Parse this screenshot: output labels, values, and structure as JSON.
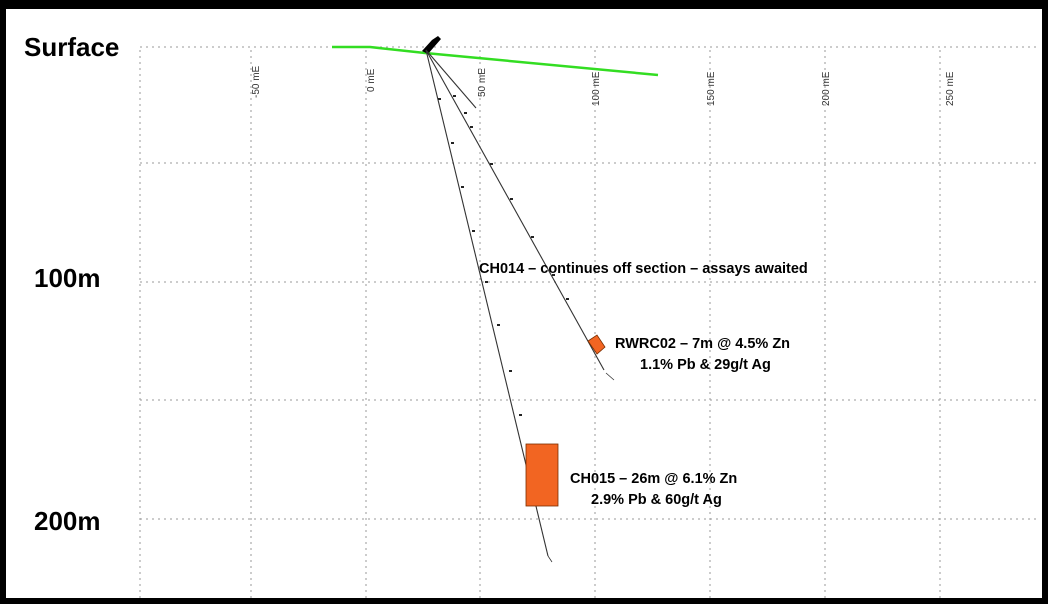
{
  "depth_labels": {
    "surface": "Surface",
    "d100": "100m",
    "d200": "200m"
  },
  "easting_labels": [
    "-50 mE",
    "0 mE",
    "50 mE",
    "100 mE",
    "150 mE",
    "200 mE",
    "250 mE"
  ],
  "annotations": {
    "ch014": "CH014 – continues off section – assays awaited",
    "rwrc02_line1": "RWRC02 – 7m @ 4.5% Zn",
    "rwrc02_line2": "1.1% Pb & 29g/t Ag",
    "ch015_line1": "CH015 – 26m @ 6.1% Zn",
    "ch015_line2": "2.9% Pb & 60g/t Ag"
  },
  "colors": {
    "surface_line": "#33dd22",
    "intercept_fill": "#f26522",
    "intercept_stroke": "#7a2e00",
    "drillhole": "#333333",
    "frame": "#000000"
  }
}
